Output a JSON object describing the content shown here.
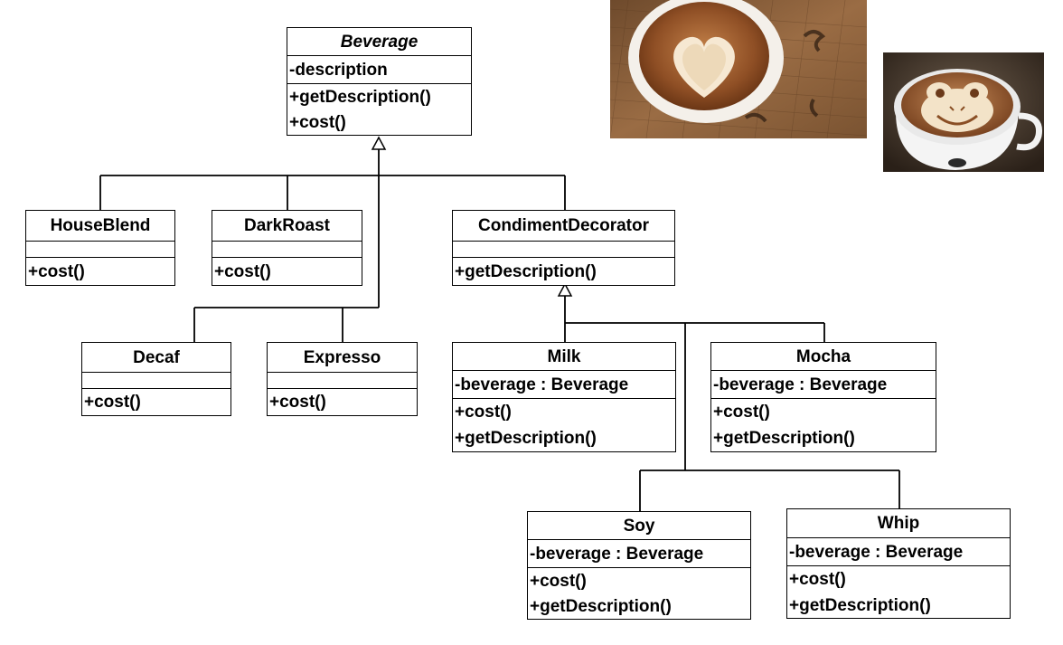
{
  "classes": {
    "beverage": {
      "name": "Beverage",
      "attributes": [
        "-description"
      ],
      "operations": [
        "+getDescription()",
        "+cost()"
      ]
    },
    "houseblend": {
      "name": "HouseBlend",
      "attributes": [],
      "operations": [
        "+cost()"
      ]
    },
    "darkroast": {
      "name": "DarkRoast",
      "attributes": [],
      "operations": [
        "+cost()"
      ]
    },
    "condimentdecorator": {
      "name": "CondimentDecorator",
      "attributes": [],
      "operations": [
        "+getDescription()"
      ]
    },
    "decaf": {
      "name": "Decaf",
      "attributes": [],
      "operations": [
        "+cost()"
      ]
    },
    "expresso": {
      "name": "Expresso",
      "attributes": [],
      "operations": [
        "+cost()"
      ]
    },
    "milk": {
      "name": "Milk",
      "attributes": [
        "-beverage : Beverage"
      ],
      "operations": [
        "+cost()",
        "+getDescription()"
      ]
    },
    "mocha": {
      "name": "Mocha",
      "attributes": [
        "-beverage : Beverage"
      ],
      "operations": [
        "+cost()",
        "+getDescription()"
      ]
    },
    "soy": {
      "name": "Soy",
      "attributes": [
        "-beverage : Beverage"
      ],
      "operations": [
        "+cost()",
        "+getDescription()"
      ]
    },
    "whip": {
      "name": "Whip",
      "attributes": [
        "-beverage : Beverage"
      ],
      "operations": [
        "+cost()",
        "+getDescription()"
      ]
    }
  },
  "colors": {
    "line": "#000000",
    "latte_bg": "#8a5a34",
    "latte_foam": "#f3e3c8",
    "latte_crema": "#a8683a",
    "cup_white": "#f4f4f4"
  }
}
